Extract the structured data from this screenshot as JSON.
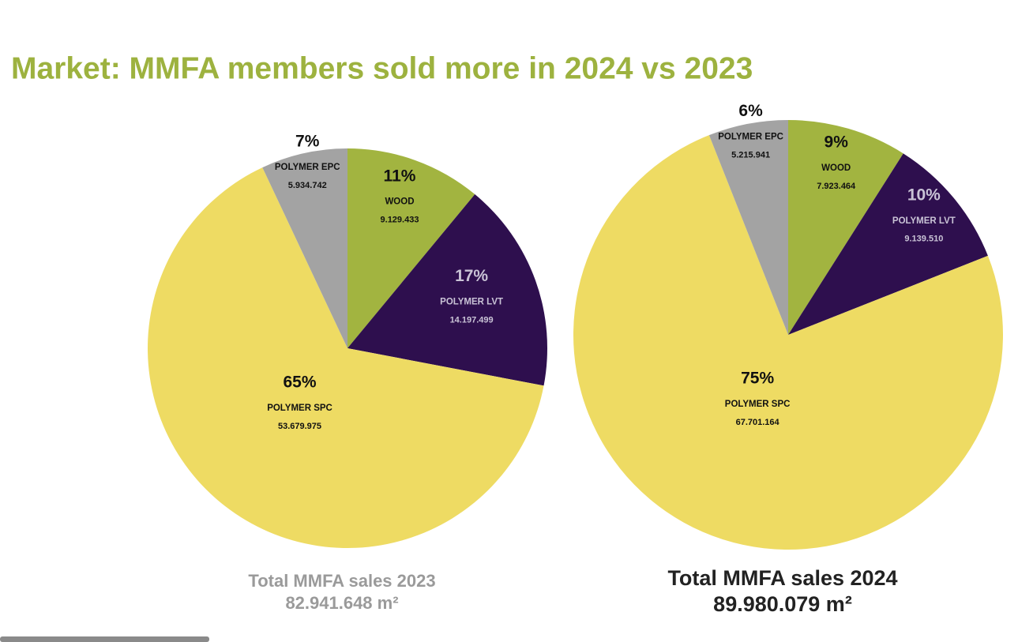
{
  "title": "Market: MMFA members sold more in 2024 vs 2023",
  "chart_data": [
    {
      "type": "pie",
      "categories": [
        "WOOD",
        "POLYMER LVT",
        "POLYMER SPC",
        "POLYMER EPC"
      ],
      "values": [
        11,
        17,
        65,
        7
      ],
      "value_labels": [
        "11%",
        "17%",
        "65%",
        "7%"
      ],
      "amounts": [
        "9.129.433",
        "14.197.499",
        "53.679.975",
        "5.934.742"
      ],
      "colors": [
        "#a2b440",
        "#2e0f4e",
        "#eedb63",
        "#a3a3a3"
      ],
      "caption": "Total MMFA sales 2023",
      "total": "82.941.648 m²",
      "caption_color": "#9a9a9a"
    },
    {
      "type": "pie",
      "categories": [
        "WOOD",
        "POLYMER LVT",
        "POLYMER SPC",
        "POLYMER EPC"
      ],
      "values": [
        9,
        10,
        75,
        6
      ],
      "value_labels": [
        "9%",
        "10%",
        "75%",
        "6%"
      ],
      "amounts": [
        "7.923.464",
        "9.139.510",
        "67.701.164",
        "5.215.941"
      ],
      "colors": [
        "#a2b440",
        "#2e0f4e",
        "#eedb63",
        "#a3a3a3"
      ],
      "caption": "Total MMFA sales 2024",
      "total": "89.980.079 m²",
      "caption_color": "#222222"
    }
  ]
}
